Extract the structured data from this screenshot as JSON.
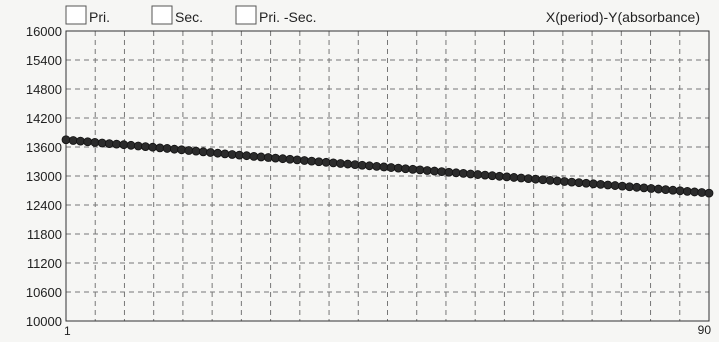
{
  "legend": [
    {
      "label": "Pri."
    },
    {
      "label": "Sec."
    },
    {
      "label": "Pri. -Sec."
    }
  ],
  "axis_title": "X(period)-Y(absorbance)",
  "chart_data": {
    "type": "scatter",
    "title": "",
    "xlabel": "X(period)",
    "ylabel": "Y(absorbance)",
    "xlim": [
      1,
      90
    ],
    "ylim": [
      10000,
      16000
    ],
    "grid": true,
    "y_ticks": [
      16000,
      15400,
      14800,
      14200,
      13600,
      13000,
      12400,
      11800,
      11200,
      10600,
      10000
    ],
    "x_tick_labels": [
      "1",
      "90"
    ],
    "series": [
      {
        "color": "#2b2b2b",
        "x": [
          1,
          2,
          3,
          4,
          5,
          6,
          7,
          8,
          9,
          10,
          11,
          12,
          13,
          14,
          15,
          16,
          17,
          18,
          19,
          20,
          21,
          22,
          23,
          24,
          25,
          26,
          27,
          28,
          29,
          30,
          31,
          32,
          33,
          34,
          35,
          36,
          37,
          38,
          39,
          40,
          41,
          42,
          43,
          44,
          45,
          46,
          47,
          48,
          49,
          50,
          51,
          52,
          53,
          54,
          55,
          56,
          57,
          58,
          59,
          60,
          61,
          62,
          63,
          64,
          65,
          66,
          67,
          68,
          69,
          70,
          71,
          72,
          73,
          74,
          75,
          76,
          77,
          78,
          79,
          80,
          81,
          82,
          83,
          84,
          85,
          86,
          87,
          88,
          89,
          90
        ],
        "y": [
          13750,
          13735,
          13722,
          13708,
          13695,
          13682,
          13670,
          13660,
          13648,
          13635,
          13620,
          13608,
          13596,
          13582,
          13570,
          13555,
          13542,
          13528,
          13514,
          13500,
          13486,
          13472,
          13458,
          13445,
          13432,
          13420,
          13406,
          13394,
          13382,
          13370,
          13358,
          13346,
          13333,
          13320,
          13307,
          13295,
          13283,
          13271,
          13259,
          13247,
          13235,
          13223,
          13211,
          13199,
          13187,
          13175,
          13163,
          13150,
          13138,
          13126,
          13114,
          13102,
          13090,
          13078,
          13066,
          13054,
          13042,
          13030,
          13018,
          13006,
          12994,
          12982,
          12970,
          12958,
          12946,
          12934,
          12922,
          12910,
          12898,
          12886,
          12874,
          12862,
          12850,
          12838,
          12826,
          12814,
          12802,
          12790,
          12778,
          12766,
          12754,
          12742,
          12730,
          12718,
          12706,
          12694,
          12682,
          12670,
          12658,
          12645
        ]
      }
    ]
  }
}
